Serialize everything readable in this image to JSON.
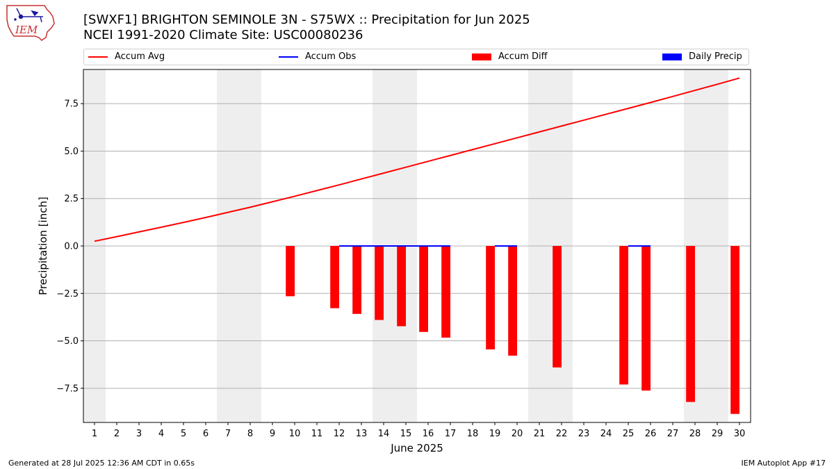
{
  "title_line1": "[SWXF1] BRIGHTON SEMINOLE 3N - S75WX :: Precipitation for Jun 2025",
  "title_line2": "NCEI 1991-2020 Climate Site: USC00080236",
  "logo_text": "IEM",
  "footer_left": "Generated at 28 Jul 2025 12:36 AM CDT in 0.65s",
  "footer_right": "IEM Autoplot App #17",
  "colors": {
    "accum_avg": "#ff0000",
    "accum_obs": "#0000ff",
    "accum_diff": "#ff0000",
    "daily_precip": "#0000ff",
    "weekend_band": "#eeeeee",
    "grid": "#b0b0b0"
  },
  "chart_data": {
    "type": "bar",
    "xlabel": "June 2025",
    "ylabel": "Precipitation [inch]",
    "xlim": [
      0.5,
      30.5
    ],
    "ylim": [
      -9.3,
      9.3
    ],
    "yticks": [
      -7.5,
      -5.0,
      -2.5,
      0.0,
      2.5,
      5.0,
      7.5
    ],
    "ytick_labels": [
      "−7.5",
      "−5.0",
      "−2.5",
      "0.0",
      "2.5",
      "5.0",
      "7.5"
    ],
    "grid": "y",
    "legend_placement": "top",
    "weekend_bands": [
      [
        0.5,
        1.5
      ],
      [
        6.5,
        8.5
      ],
      [
        13.5,
        15.5
      ],
      [
        20.5,
        22.5
      ],
      [
        27.5,
        29.5
      ]
    ],
    "days": [
      1,
      2,
      3,
      4,
      5,
      6,
      7,
      8,
      9,
      10,
      11,
      12,
      13,
      14,
      15,
      16,
      17,
      18,
      19,
      20,
      21,
      22,
      23,
      24,
      25,
      26,
      27,
      28,
      29,
      30
    ],
    "legend": [
      "Accum Avg",
      "Accum Obs",
      "Accum Diff",
      "Daily Precip"
    ],
    "series": [
      {
        "name": "Accum Avg",
        "kind": "line",
        "values": [
          0.25,
          0.49,
          0.74,
          0.99,
          1.24,
          1.5,
          1.77,
          2.04,
          2.33,
          2.62,
          2.92,
          3.22,
          3.53,
          3.84,
          4.15,
          4.46,
          4.77,
          5.08,
          5.39,
          5.7,
          6.01,
          6.32,
          6.63,
          6.94,
          7.25,
          7.56,
          7.88,
          8.2,
          8.52,
          8.85
        ]
      },
      {
        "name": "Accum Obs",
        "kind": "line",
        "segments": [
          [
            12,
            17
          ],
          [
            19,
            20
          ],
          [
            25,
            26
          ]
        ],
        "value": 0.0
      },
      {
        "name": "Accum Diff",
        "kind": "bar",
        "bars": [
          {
            "day": 10,
            "value": -2.65
          },
          {
            "day": 12,
            "value": -3.28
          },
          {
            "day": 13,
            "value": -3.58
          },
          {
            "day": 14,
            "value": -3.9
          },
          {
            "day": 15,
            "value": -4.23
          },
          {
            "day": 16,
            "value": -4.53
          },
          {
            "day": 17,
            "value": -4.83
          },
          {
            "day": 19,
            "value": -5.45
          },
          {
            "day": 20,
            "value": -5.78
          },
          {
            "day": 22,
            "value": -6.4
          },
          {
            "day": 25,
            "value": -7.3
          },
          {
            "day": 26,
            "value": -7.62
          },
          {
            "day": 28,
            "value": -8.22
          },
          {
            "day": 30,
            "value": -8.85
          }
        ]
      },
      {
        "name": "Daily Precip",
        "kind": "bar",
        "bars": []
      }
    ]
  }
}
